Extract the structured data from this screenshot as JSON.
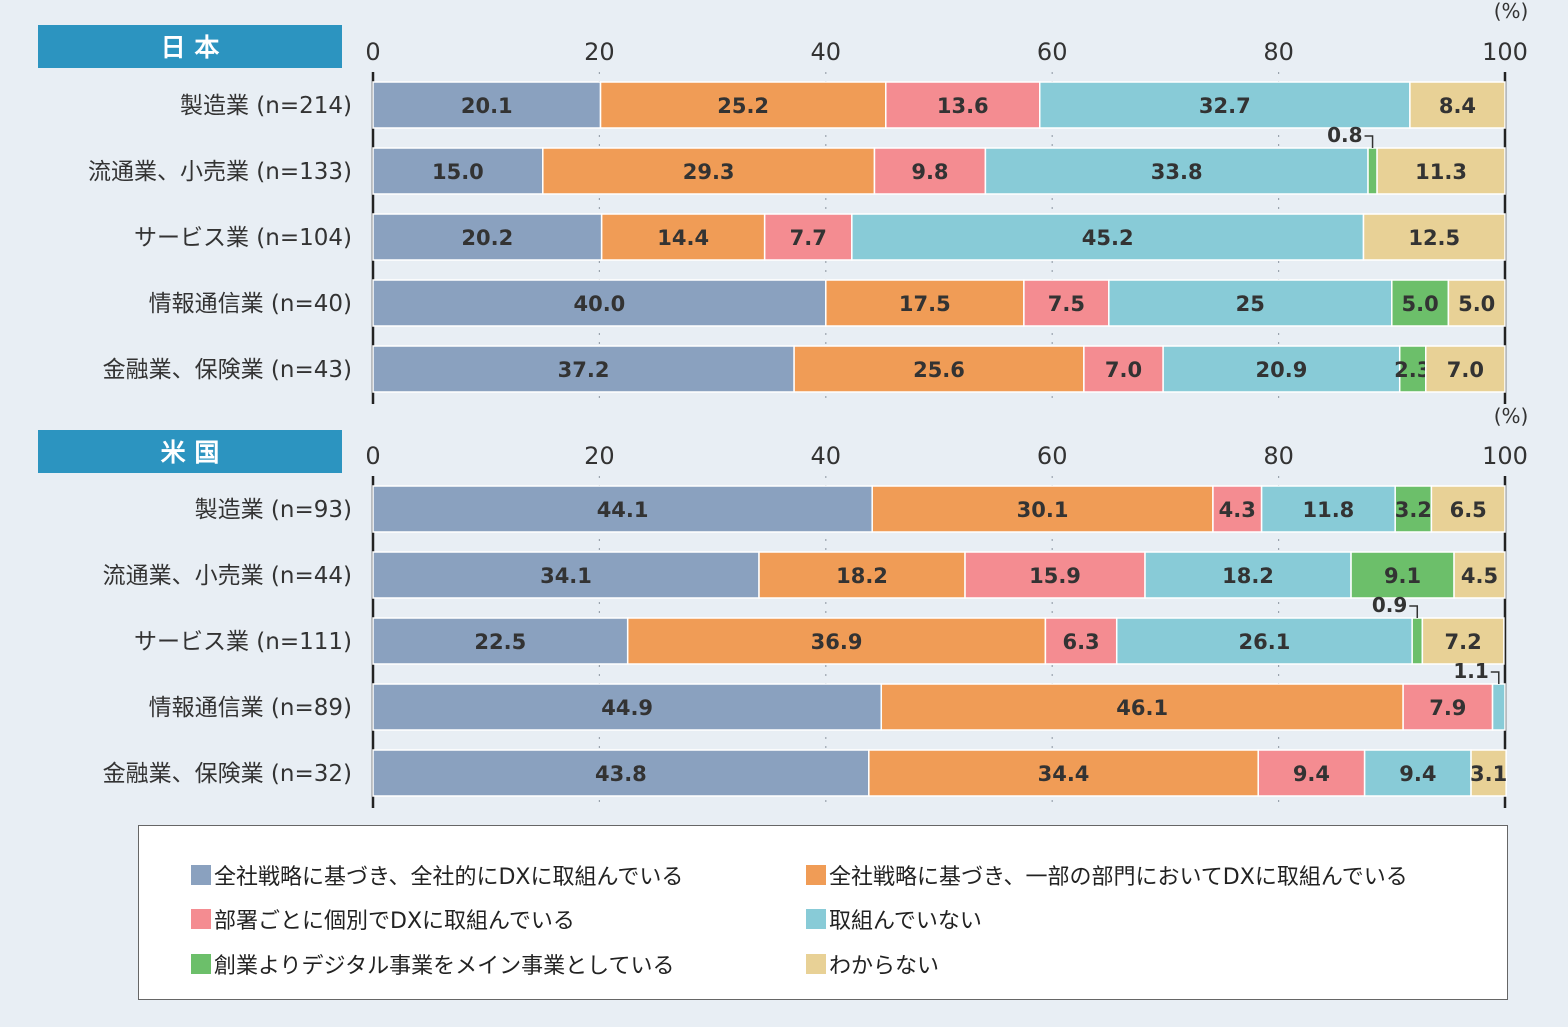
{
  "colors": {
    "series": [
      "#8aa1bf",
      "#f09c56",
      "#f48c91",
      "#88cbd7",
      "#6cbf6a",
      "#e8d196"
    ],
    "header_bg": "#2c94c0",
    "background": "#e8eef4"
  },
  "unit_label": "(%)",
  "chart_data": [
    {
      "type": "bar",
      "orientation": "horizontal",
      "stacked": true,
      "title": "日 本",
      "xlim": [
        0,
        100
      ],
      "xticks": [
        0,
        20,
        40,
        60,
        80,
        100
      ],
      "grid": true,
      "categories": [
        "製造業 (n=214)",
        "流通業、小売業 (n=133)",
        "サービス業 (n=104)",
        "情報通信業 (n=40)",
        "金融業、保険業 (n=43)"
      ],
      "series": [
        {
          "name": "全社戦略に基づき、全社的にDXに取組んでいる",
          "values": [
            20.1,
            15.0,
            20.2,
            40.0,
            37.2
          ],
          "labels": [
            "20.1",
            "15.0",
            "20.2",
            "40.0",
            "37.2"
          ]
        },
        {
          "name": "全社戦略に基づき、一部の部門においてDXに取組んでいる",
          "values": [
            25.2,
            29.3,
            14.4,
            17.5,
            25.6
          ],
          "labels": [
            "25.2",
            "29.3",
            "14.4",
            "17.5",
            "25.6"
          ]
        },
        {
          "name": "部署ごとに個別でDXに取組んでいる",
          "values": [
            13.6,
            9.8,
            7.7,
            7.5,
            7.0
          ],
          "labels": [
            "13.6",
            "9.8",
            "7.7",
            "7.5",
            "7.0"
          ]
        },
        {
          "name": "取組んでいない",
          "values": [
            32.7,
            33.8,
            45.2,
            25,
            20.9
          ],
          "labels": [
            "32.7",
            "33.8",
            "45.2",
            "25",
            "20.9"
          ]
        },
        {
          "name": "創業よりデジタル事業をメイン事業としている",
          "values": [
            0,
            0.8,
            0,
            5.0,
            2.3
          ],
          "labels": [
            "",
            "0.8",
            "",
            "5.0",
            "2.3"
          ]
        },
        {
          "name": "わからない",
          "values": [
            8.4,
            11.3,
            12.5,
            5.0,
            7.0
          ],
          "labels": [
            "8.4",
            "11.3",
            "12.5",
            "5.0",
            "7.0"
          ]
        }
      ],
      "callouts": [
        {
          "row": 1,
          "series": 4
        }
      ]
    },
    {
      "type": "bar",
      "orientation": "horizontal",
      "stacked": true,
      "title": "米 国",
      "xlim": [
        0,
        100
      ],
      "xticks": [
        0,
        20,
        40,
        60,
        80,
        100
      ],
      "grid": true,
      "categories": [
        "製造業 (n=93)",
        "流通業、小売業 (n=44)",
        "サービス業 (n=111)",
        "情報通信業 (n=89)",
        "金融業、保険業 (n=32)"
      ],
      "series": [
        {
          "name": "全社戦略に基づき、全社的にDXに取組んでいる",
          "values": [
            44.1,
            34.1,
            22.5,
            44.9,
            43.8
          ],
          "labels": [
            "44.1",
            "34.1",
            "22.5",
            "44.9",
            "43.8"
          ]
        },
        {
          "name": "全社戦略に基づき、一部の部門においてDXに取組んでいる",
          "values": [
            30.1,
            18.2,
            36.9,
            46.1,
            34.4
          ],
          "labels": [
            "30.1",
            "18.2",
            "36.9",
            "46.1",
            "34.4"
          ]
        },
        {
          "name": "部署ごとに個別でDXに取組んでいる",
          "values": [
            4.3,
            15.9,
            6.3,
            7.9,
            9.4
          ],
          "labels": [
            "4.3",
            "15.9",
            "6.3",
            "7.9",
            "9.4"
          ]
        },
        {
          "name": "取組んでいない",
          "values": [
            11.8,
            18.2,
            26.1,
            1.1,
            9.4
          ],
          "labels": [
            "11.8",
            "18.2",
            "26.1",
            "1.1",
            "9.4"
          ]
        },
        {
          "name": "創業よりデジタル事業をメイン事業としている",
          "values": [
            3.2,
            9.1,
            0.9,
            0,
            0
          ],
          "labels": [
            "3.2",
            "9.1",
            "0.9",
            "",
            ""
          ]
        },
        {
          "name": "わからない",
          "values": [
            6.5,
            4.5,
            7.2,
            0,
            3.1
          ],
          "labels": [
            "6.5",
            "4.5",
            "7.2",
            "",
            "3.1"
          ]
        }
      ],
      "callouts": [
        {
          "row": 2,
          "series": 4
        },
        {
          "row": 3,
          "series": 3
        }
      ]
    }
  ],
  "legend": {
    "items": [
      "全社戦略に基づき、全社的にDXに取組んでいる",
      "全社戦略に基づき、一部の部門においてDXに取組んでいる",
      "部署ごとに個別でDXに取組んでいる",
      "取組んでいない",
      "創業よりデジタル事業をメイン事業としている",
      "わからない"
    ]
  }
}
